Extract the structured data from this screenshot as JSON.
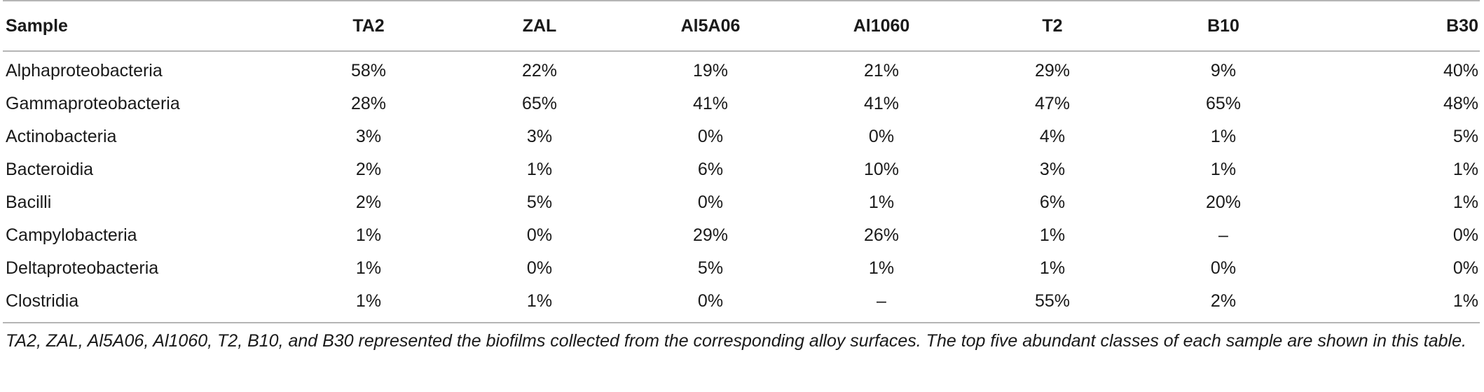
{
  "table": {
    "headers": [
      "Sample",
      "TA2",
      "ZAL",
      "Al5A06",
      "Al1060",
      "T2",
      "B10",
      "B30"
    ],
    "rows": [
      [
        "Alphaproteobacteria",
        "58%",
        "22%",
        "19%",
        "21%",
        "29%",
        "9%",
        "40%"
      ],
      [
        "Gammaproteobacteria",
        "28%",
        "65%",
        "41%",
        "41%",
        "47%",
        "65%",
        "48%"
      ],
      [
        "Actinobacteria",
        "3%",
        "3%",
        "0%",
        "0%",
        "4%",
        "1%",
        "5%"
      ],
      [
        "Bacteroidia",
        "2%",
        "1%",
        "6%",
        "10%",
        "3%",
        "1%",
        "1%"
      ],
      [
        "Bacilli",
        "2%",
        "5%",
        "0%",
        "1%",
        "6%",
        "20%",
        "1%"
      ],
      [
        "Campylobacteria",
        "1%",
        "0%",
        "29%",
        "26%",
        "1%",
        "–",
        "0%"
      ],
      [
        "Deltaproteobacteria",
        "1%",
        "0%",
        "5%",
        "1%",
        "1%",
        "0%",
        "0%"
      ],
      [
        "Clostridia",
        "1%",
        "1%",
        "0%",
        "–",
        "55%",
        "2%",
        "1%"
      ]
    ]
  },
  "footnote": "TA2, ZAL, Al5A06, Al1060, T2, B10, and B30 represented the biofilms collected from the corresponding alloy surfaces. The top five abundant classes of each sample are shown in this table."
}
